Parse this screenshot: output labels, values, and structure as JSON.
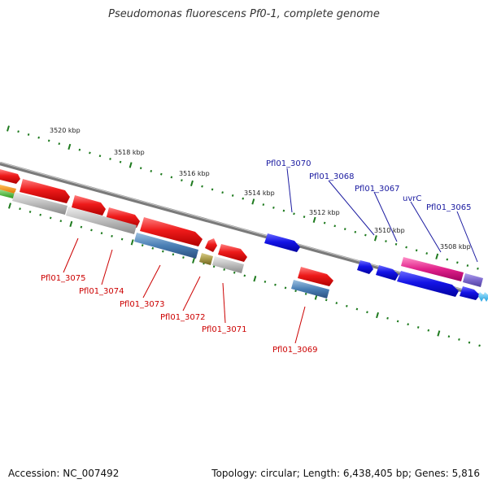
{
  "title": "Pseudomonas fluorescens Pf0-1, complete genome",
  "footer": {
    "accession_label": "Accession:",
    "accession": "NC_007492",
    "topology_label": "Topology:",
    "topology": "circular",
    "length_label": "Length:",
    "length": "6,438,405 bp",
    "genes_label": "Genes:",
    "genes": "5,816"
  },
  "ruler": {
    "unit": "kbp",
    "ticks": [
      "3520",
      "3518",
      "3516",
      "3514",
      "3512",
      "3510",
      "3508"
    ]
  },
  "colors": {
    "backbone": "#8a8a8a",
    "gene_forward": "#e81010",
    "gene_reverse": "#1010e0",
    "rna_pink": "#e0208a",
    "misc_purple": "#7a66cc",
    "cds_steelblue": "#4a7fb5",
    "cds_gray": "#b8b8b8",
    "cds_olive": "#a89a4a",
    "tick_green": "#1e7a1e",
    "label_red": "#cc0000",
    "label_blue": "#1a1aa0"
  },
  "genes_top": [
    {
      "id": "Pfl01_3070"
    },
    {
      "id": "Pfl01_3068"
    },
    {
      "id": "Pfl01_3067"
    },
    {
      "id": "uvrC"
    },
    {
      "id": "Pfl01_3065"
    }
  ],
  "genes_bottom": [
    {
      "id": "Pfl01_3075"
    },
    {
      "id": "Pfl01_3074"
    },
    {
      "id": "Pfl01_3073"
    },
    {
      "id": "Pfl01_3072"
    },
    {
      "id": "Pfl01_3071"
    },
    {
      "id": "Pfl01_3069"
    }
  ]
}
